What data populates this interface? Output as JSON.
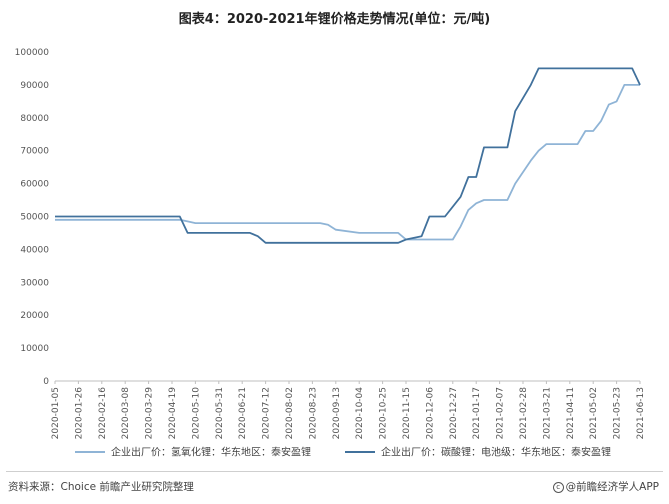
{
  "chart_data": {
    "type": "line",
    "title": "图表4：2020-2021年锂价格走势情况(单位：元/吨)",
    "ylim": [
      0,
      100000
    ],
    "yticks": [
      "0",
      "10000",
      "20000",
      "30000",
      "40000",
      "50000",
      "60000",
      "70000",
      "80000",
      "90000",
      "100000"
    ],
    "xticks": [
      "2020-01-05",
      "2020-01-26",
      "2020-02-16",
      "2020-03-08",
      "2020-03-29",
      "2020-04-19",
      "2020-05-10",
      "2020-05-31",
      "2020-06-21",
      "2020-07-12",
      "2020-08-02",
      "2020-08-23",
      "2020-09-13",
      "2020-10-04",
      "2020-10-25",
      "2020-11-15",
      "2020-12-06",
      "2020-12-27",
      "2021-01-17",
      "2021-02-07",
      "2021-02-28",
      "2021-03-21",
      "2021-04-11",
      "2021-05-02",
      "2021-05-23",
      "2021-06-13"
    ],
    "grid": false,
    "legend": "bottom",
    "series": [
      {
        "name": "企业出厂价：氢氧化锂：华东地区：泰安盈锂",
        "color": "#8fb4d6",
        "points": [
          [
            "2020-01-05",
            49000
          ],
          [
            "2020-04-26",
            49000
          ],
          [
            "2020-05-03",
            48500
          ],
          [
            "2020-05-10",
            48000
          ],
          [
            "2020-06-21",
            48000
          ],
          [
            "2020-08-30",
            48000
          ],
          [
            "2020-09-06",
            47500
          ],
          [
            "2020-09-13",
            46000
          ],
          [
            "2020-10-04",
            45000
          ],
          [
            "2020-11-08",
            45000
          ],
          [
            "2020-11-15",
            43000
          ],
          [
            "2020-12-27",
            43000
          ],
          [
            "2021-01-03",
            47000
          ],
          [
            "2021-01-10",
            52000
          ],
          [
            "2021-01-17",
            54000
          ],
          [
            "2021-01-24",
            55000
          ],
          [
            "2021-02-14",
            55000
          ],
          [
            "2021-02-21",
            60000
          ],
          [
            "2021-03-07",
            67000
          ],
          [
            "2021-03-14",
            70000
          ],
          [
            "2021-03-21",
            72000
          ],
          [
            "2021-04-18",
            72000
          ],
          [
            "2021-04-25",
            76000
          ],
          [
            "2021-05-02",
            76000
          ],
          [
            "2021-05-09",
            79000
          ],
          [
            "2021-05-16",
            84000
          ],
          [
            "2021-05-23",
            85000
          ],
          [
            "2021-05-30",
            90000
          ],
          [
            "2021-06-13",
            90000
          ]
        ]
      },
      {
        "name": "企业出厂价：碳酸锂：电池级：华东地区：泰安盈锂",
        "color": "#41719c",
        "points": [
          [
            "2020-01-05",
            50000
          ],
          [
            "2020-04-26",
            50000
          ],
          [
            "2020-05-03",
            45000
          ],
          [
            "2020-06-28",
            45000
          ],
          [
            "2020-07-05",
            44000
          ],
          [
            "2020-07-12",
            42000
          ],
          [
            "2020-11-08",
            42000
          ],
          [
            "2020-11-15",
            43000
          ],
          [
            "2020-11-29",
            44000
          ],
          [
            "2020-12-06",
            50000
          ],
          [
            "2020-12-20",
            50000
          ],
          [
            "2021-01-03",
            56000
          ],
          [
            "2021-01-10",
            62000
          ],
          [
            "2021-01-17",
            62000
          ],
          [
            "2021-01-24",
            71000
          ],
          [
            "2021-02-14",
            71000
          ],
          [
            "2021-02-21",
            82000
          ],
          [
            "2021-03-07",
            90000
          ],
          [
            "2021-03-14",
            95000
          ],
          [
            "2021-06-06",
            95000
          ],
          [
            "2021-06-13",
            90000
          ]
        ]
      }
    ]
  },
  "footer": {
    "source": "资料来源：Choice 前瞻产业研究院整理",
    "brand": "@前瞻经济学人APP",
    "brand_icon": "copyright-circle-icon"
  }
}
